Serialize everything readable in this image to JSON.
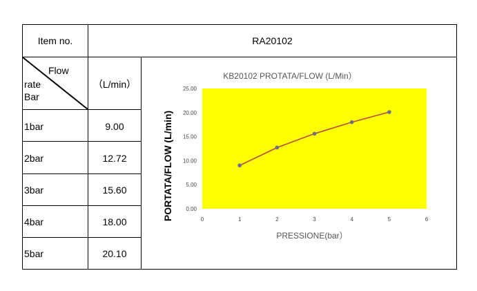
{
  "table": {
    "item_no_label": "Item no.",
    "model": "RA20102",
    "header_flow": "Flow",
    "header_rate": "rate",
    "header_bar": "Bar",
    "unit": "（L/min）",
    "rows": [
      {
        "pressure": "1bar",
        "flow": "9.00"
      },
      {
        "pressure": "2bar",
        "flow": "12.72"
      },
      {
        "pressure": "3bar",
        "flow": "15.60"
      },
      {
        "pressure": "4bar",
        "flow": "18.00"
      },
      {
        "pressure": "5bar",
        "flow": "20.10"
      }
    ]
  },
  "chart_data": {
    "type": "line",
    "title": "KB20102   PROTATA/FLOW (L/Min）",
    "xlabel": "PRESSIONE(bar）",
    "ylabel": "PORTATA/FLOW (L/min)",
    "x": [
      1,
      2,
      3,
      4,
      5
    ],
    "values": [
      9.0,
      12.72,
      15.6,
      18.0,
      20.1
    ],
    "xlim": [
      0,
      6
    ],
    "ylim": [
      0,
      25
    ],
    "x_ticks": [
      "0",
      "1",
      "2",
      "3",
      "4",
      "5",
      "6"
    ],
    "y_ticks": [
      "0.00",
      "5.00",
      "10.00",
      "15.00",
      "20.00",
      "25.00"
    ],
    "grid": false,
    "plot_background": "#ffff00",
    "line_color": "#b84a3e",
    "marker_color": "#6a6f90"
  }
}
